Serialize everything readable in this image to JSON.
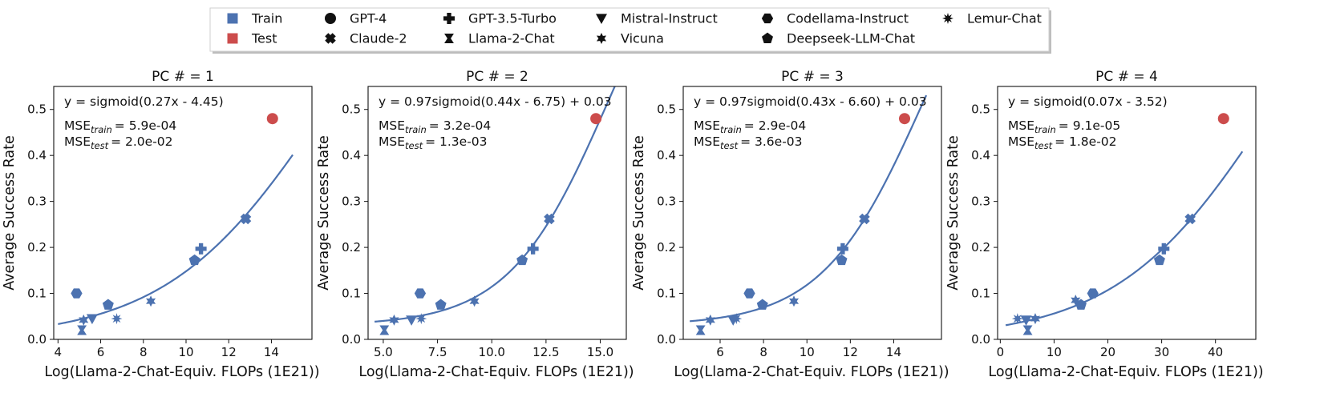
{
  "colors": {
    "train": "#4c72b0",
    "test": "#cc4c4c",
    "fit": "#4c72b0"
  },
  "legend": {
    "entries": [
      {
        "label": "Train",
        "marker": "square-train"
      },
      {
        "label": "Test",
        "marker": "square-test"
      },
      {
        "label": "GPT-4",
        "marker": "circle"
      },
      {
        "label": "Claude-2",
        "marker": "x-cross"
      },
      {
        "label": "GPT-3.5-Turbo",
        "marker": "plus"
      },
      {
        "label": "Llama-2-Chat",
        "marker": "bowtie"
      },
      {
        "label": "Mistral-Instruct",
        "marker": "triangle-down"
      },
      {
        "label": "Vicuna",
        "marker": "star-6"
      },
      {
        "label": "Codellama-Instruct",
        "marker": "hexagon"
      },
      {
        "label": "Deepseek-LLM-Chat",
        "marker": "pentagon"
      },
      {
        "label": "Lemur-Chat",
        "marker": "star-8"
      }
    ]
  },
  "chart_data": [
    {
      "type": "scatter",
      "title": "PC # = 1",
      "xlabel": "Log(Llama-2-Chat-Equiv. FLOPs (1E21))",
      "ylabel": "Average Success Rate",
      "xlim": [
        3.8,
        15.9
      ],
      "ylim": [
        0,
        0.55
      ],
      "xticks": [
        "4",
        "6",
        "8",
        "10",
        "12",
        "14"
      ],
      "yticks": [
        "0.0",
        "0.1",
        "0.2",
        "0.3",
        "0.4",
        "0.5"
      ],
      "equation": "y = sigmoid(0.27x - 4.45)",
      "mse_train_value": "= 5.9e-04",
      "mse_test_value": "= 2.0e-02",
      "fit": {
        "a": 1.0,
        "k": 0.27,
        "b": -4.45,
        "c": 0.0,
        "x_range": [
          4.0,
          15.0
        ]
      },
      "points": [
        {
          "model": "Codellama-Instruct",
          "split": "train",
          "x": 4.87,
          "y": 0.1
        },
        {
          "model": "Llama-2-Chat",
          "split": "train",
          "x": 5.12,
          "y": 0.02
        },
        {
          "model": "Vicuna",
          "split": "train",
          "x": 5.2,
          "y": 0.042
        },
        {
          "model": "Mistral-Instruct",
          "split": "train",
          "x": 5.6,
          "y": 0.045
        },
        {
          "model": "Deepseek-LLM-Chat",
          "split": "train",
          "x": 6.35,
          "y": 0.075
        },
        {
          "model": "Lemur-Chat",
          "split": "train",
          "x": 6.75,
          "y": 0.045
        },
        {
          "model": "Vicuna",
          "split": "train",
          "x": 8.35,
          "y": 0.083
        },
        {
          "model": "Deepseek-LLM-Chat",
          "split": "train",
          "x": 10.4,
          "y": 0.172
        },
        {
          "model": "GPT-3.5-Turbo",
          "split": "train",
          "x": 10.7,
          "y": 0.197
        },
        {
          "model": "Claude-2",
          "split": "train",
          "x": 12.8,
          "y": 0.262
        },
        {
          "model": "GPT-4",
          "split": "test",
          "x": 14.05,
          "y": 0.48
        }
      ]
    },
    {
      "type": "scatter",
      "title": "PC # = 2",
      "xlabel": "Log(Llama-2-Chat-Equiv. FLOPs (1E21))",
      "ylabel": "Average Success Rate",
      "xlim": [
        4.3,
        16.2
      ],
      "ylim": [
        0,
        0.55
      ],
      "xticks": [
        "5.0",
        "7.5",
        "10.0",
        "12.5",
        "15.0"
      ],
      "yticks": [
        "0.0",
        "0.1",
        "0.2",
        "0.3",
        "0.4",
        "0.5"
      ],
      "equation": "y = 0.97sigmoid(0.44x - 6.75) + 0.03",
      "mse_train_value": "= 3.2e-04",
      "mse_test_value": "= 1.3e-03",
      "fit": {
        "a": 0.97,
        "k": 0.44,
        "b": -6.75,
        "c": 0.03,
        "x_range": [
          4.6,
          15.75
        ]
      },
      "points": [
        {
          "model": "Llama-2-Chat",
          "split": "train",
          "x": 5.05,
          "y": 0.02
        },
        {
          "model": "Vicuna",
          "split": "train",
          "x": 5.5,
          "y": 0.042
        },
        {
          "model": "Mistral-Instruct",
          "split": "train",
          "x": 6.3,
          "y": 0.042
        },
        {
          "model": "Codellama-Instruct",
          "split": "train",
          "x": 6.7,
          "y": 0.1
        },
        {
          "model": "Lemur-Chat",
          "split": "train",
          "x": 6.75,
          "y": 0.045
        },
        {
          "model": "Deepseek-LLM-Chat",
          "split": "train",
          "x": 7.65,
          "y": 0.075
        },
        {
          "model": "Vicuna",
          "split": "train",
          "x": 9.2,
          "y": 0.083
        },
        {
          "model": "Deepseek-LLM-Chat",
          "split": "train",
          "x": 11.4,
          "y": 0.172
        },
        {
          "model": "GPT-3.5-Turbo",
          "split": "train",
          "x": 11.9,
          "y": 0.197
        },
        {
          "model": "Claude-2",
          "split": "train",
          "x": 12.65,
          "y": 0.262
        },
        {
          "model": "GPT-4",
          "split": "test",
          "x": 14.8,
          "y": 0.48
        }
      ]
    },
    {
      "type": "scatter",
      "title": "PC # = 3",
      "xlabel": "Log(Llama-2-Chat-Equiv. FLOPs (1E21))",
      "ylabel": "Average Success Rate",
      "xlim": [
        4.3,
        16.2
      ],
      "ylim": [
        0,
        0.55
      ],
      "xticks": [
        "6",
        "8",
        "10",
        "12",
        "14"
      ],
      "yticks": [
        "0.0",
        "0.1",
        "0.2",
        "0.3",
        "0.4",
        "0.5"
      ],
      "equation": "y = 0.97sigmoid(0.43x - 6.60) + 0.03",
      "mse_train_value": "= 2.9e-04",
      "mse_test_value": "= 3.6e-03",
      "fit": {
        "a": 0.97,
        "k": 0.43,
        "b": -6.6,
        "c": 0.03,
        "x_range": [
          4.6,
          15.5
        ]
      },
      "points": [
        {
          "model": "Llama-2-Chat",
          "split": "train",
          "x": 5.1,
          "y": 0.02
        },
        {
          "model": "Vicuna",
          "split": "train",
          "x": 5.55,
          "y": 0.042
        },
        {
          "model": "Mistral-Instruct",
          "split": "train",
          "x": 6.6,
          "y": 0.042
        },
        {
          "model": "Lemur-Chat",
          "split": "train",
          "x": 6.75,
          "y": 0.045
        },
        {
          "model": "Codellama-Instruct",
          "split": "train",
          "x": 7.35,
          "y": 0.1
        },
        {
          "model": "Deepseek-LLM-Chat",
          "split": "train",
          "x": 7.95,
          "y": 0.075
        },
        {
          "model": "Vicuna",
          "split": "train",
          "x": 9.4,
          "y": 0.083
        },
        {
          "model": "Deepseek-LLM-Chat",
          "split": "train",
          "x": 11.6,
          "y": 0.172
        },
        {
          "model": "GPT-3.5-Turbo",
          "split": "train",
          "x": 11.65,
          "y": 0.197
        },
        {
          "model": "Claude-2",
          "split": "train",
          "x": 12.65,
          "y": 0.262
        },
        {
          "model": "GPT-4",
          "split": "test",
          "x": 14.5,
          "y": 0.48
        }
      ]
    },
    {
      "type": "scatter",
      "title": "PC # = 4",
      "xlabel": "Log(Llama-2-Chat-Equiv. FLOPs (1E21))",
      "ylabel": "Average Success Rate",
      "xlim": [
        -0.5,
        47.5
      ],
      "ylim": [
        0,
        0.55
      ],
      "xticks": [
        "0",
        "10",
        "20",
        "30",
        "40"
      ],
      "yticks": [
        "0.0",
        "0.1",
        "0.2",
        "0.3",
        "0.4",
        "0.5"
      ],
      "equation": "y = sigmoid(0.07x - 3.52)",
      "mse_train_value": "= 9.1e-05",
      "mse_test_value": "= 1.8e-02",
      "fit": {
        "a": 1.0,
        "k": 0.07,
        "b": -3.52,
        "c": 0.0,
        "x_range": [
          1.0,
          45.0
        ]
      },
      "points": [
        {
          "model": "Lemur-Chat",
          "split": "train",
          "x": 3.2,
          "y": 0.045
        },
        {
          "model": "Mistral-Instruct",
          "split": "train",
          "x": 4.8,
          "y": 0.042
        },
        {
          "model": "Llama-2-Chat",
          "split": "train",
          "x": 5.1,
          "y": 0.02
        },
        {
          "model": "Vicuna",
          "split": "train",
          "x": 6.5,
          "y": 0.045
        },
        {
          "model": "Vicuna",
          "split": "train",
          "x": 14.0,
          "y": 0.085
        },
        {
          "model": "Deepseek-LLM-Chat",
          "split": "train",
          "x": 15.0,
          "y": 0.075
        },
        {
          "model": "Codellama-Instruct",
          "split": "train",
          "x": 17.2,
          "y": 0.1
        },
        {
          "model": "Deepseek-LLM-Chat",
          "split": "train",
          "x": 29.6,
          "y": 0.172
        },
        {
          "model": "GPT-3.5-Turbo",
          "split": "train",
          "x": 30.4,
          "y": 0.197
        },
        {
          "model": "Claude-2",
          "split": "train",
          "x": 35.3,
          "y": 0.262
        },
        {
          "model": "GPT-4",
          "split": "test",
          "x": 41.5,
          "y": 0.48
        }
      ]
    }
  ]
}
